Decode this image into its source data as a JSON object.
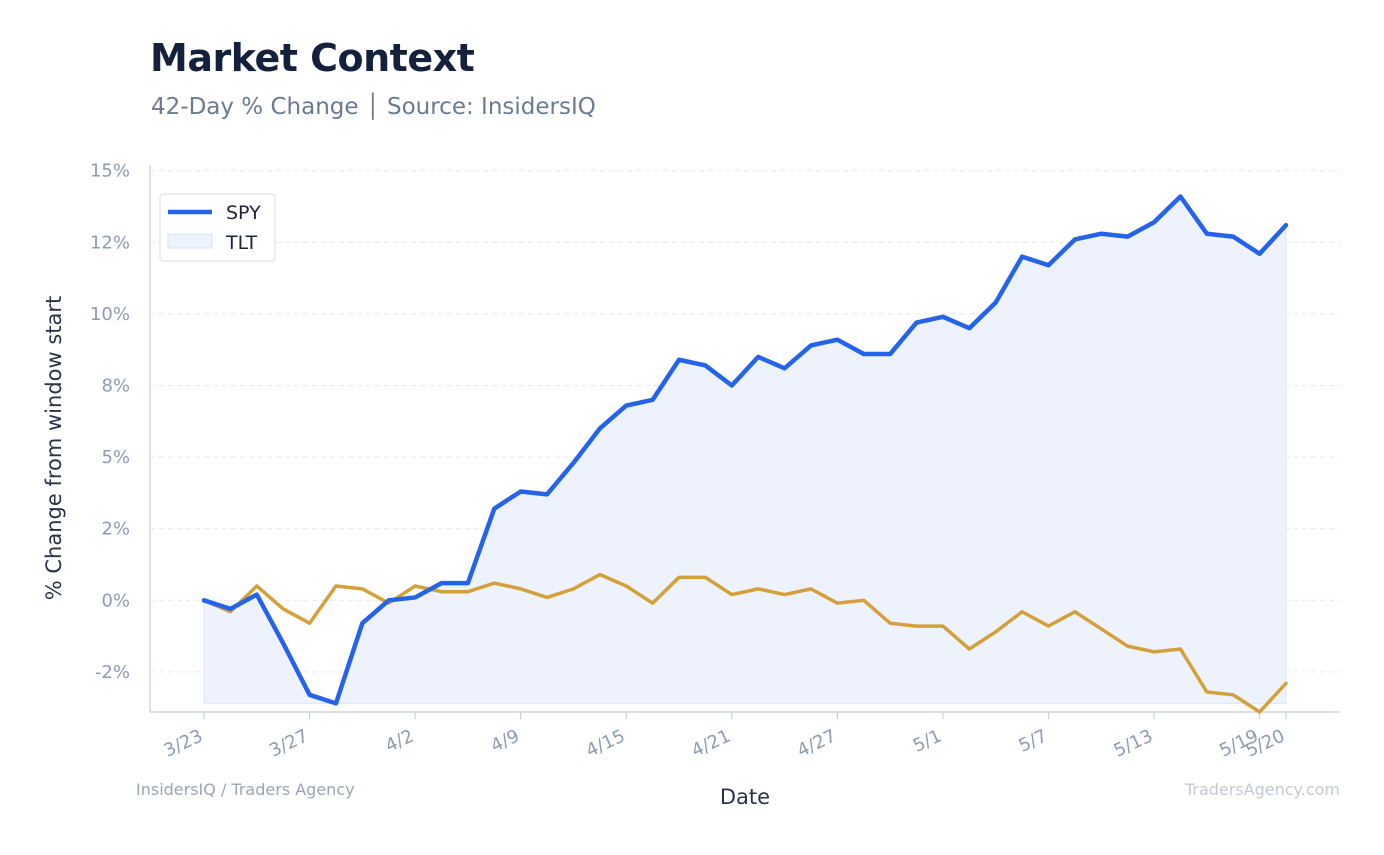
{
  "header": {
    "title": "Market Context",
    "subtitle": "42-Day % Change │ Source: InsidersIQ"
  },
  "footer": {
    "left": "InsidersIQ / Traders Agency",
    "right": "TradersAgency.com"
  },
  "colors": {
    "spy": "#2563eb",
    "tlt": "#d4a03a",
    "fill": "#eef2fc",
    "grid": "#e5e9f0",
    "axis": "#c8ced8"
  },
  "chart_data": {
    "type": "line",
    "xlabel": "Date",
    "ylabel": "% Change from window start",
    "ylim": [
      -3.9,
      15.2
    ],
    "yticks": [
      15,
      12.5,
      10,
      7.5,
      5,
      2.5,
      0,
      -2.5
    ],
    "ytick_labels": [
      "15%",
      "12%",
      "10%",
      "8%",
      "5%",
      "2%",
      "0%",
      "-2%"
    ],
    "x_tick_indices": [
      0,
      4,
      8,
      12,
      16,
      20,
      24,
      28,
      32,
      36,
      40,
      41
    ],
    "x_tick_labels": [
      "3/23",
      "3/27",
      "4/2",
      "4/9",
      "4/15",
      "4/21",
      "4/27",
      "5/1",
      "5/7",
      "5/13",
      "5/19",
      "5/20"
    ],
    "grid": true,
    "legend_position": "top-left",
    "legend": [
      {
        "label": "SPY",
        "style": "line"
      },
      {
        "label": "TLT",
        "style": "area"
      }
    ],
    "series": [
      {
        "name": "SPY",
        "values": [
          0.0,
          -0.3,
          0.2,
          -1.5,
          -3.3,
          -3.6,
          -0.8,
          0.0,
          0.1,
          0.6,
          0.6,
          3.2,
          3.8,
          3.7,
          4.8,
          6.0,
          6.8,
          7.0,
          8.4,
          8.2,
          7.5,
          8.5,
          8.1,
          8.9,
          9.1,
          8.6,
          8.6,
          9.7,
          9.9,
          9.5,
          10.4,
          12.0,
          11.7,
          12.6,
          12.8,
          12.7,
          13.2,
          14.1,
          12.8,
          12.7,
          12.1,
          13.1
        ]
      },
      {
        "name": "TLT",
        "values": [
          0.0,
          -0.4,
          0.5,
          -0.3,
          -0.8,
          0.5,
          0.4,
          -0.1,
          0.5,
          0.3,
          0.3,
          0.6,
          0.4,
          0.1,
          0.4,
          0.9,
          0.5,
          -0.1,
          0.8,
          0.8,
          0.2,
          0.4,
          0.2,
          0.4,
          -0.1,
          0.0,
          -0.8,
          -0.9,
          -0.9,
          -1.7,
          -1.1,
          -0.4,
          -0.9,
          -0.4,
          -1.0,
          -1.6,
          -1.8,
          -1.7,
          -3.2,
          -3.3,
          -3.9,
          -2.9
        ]
      }
    ]
  }
}
